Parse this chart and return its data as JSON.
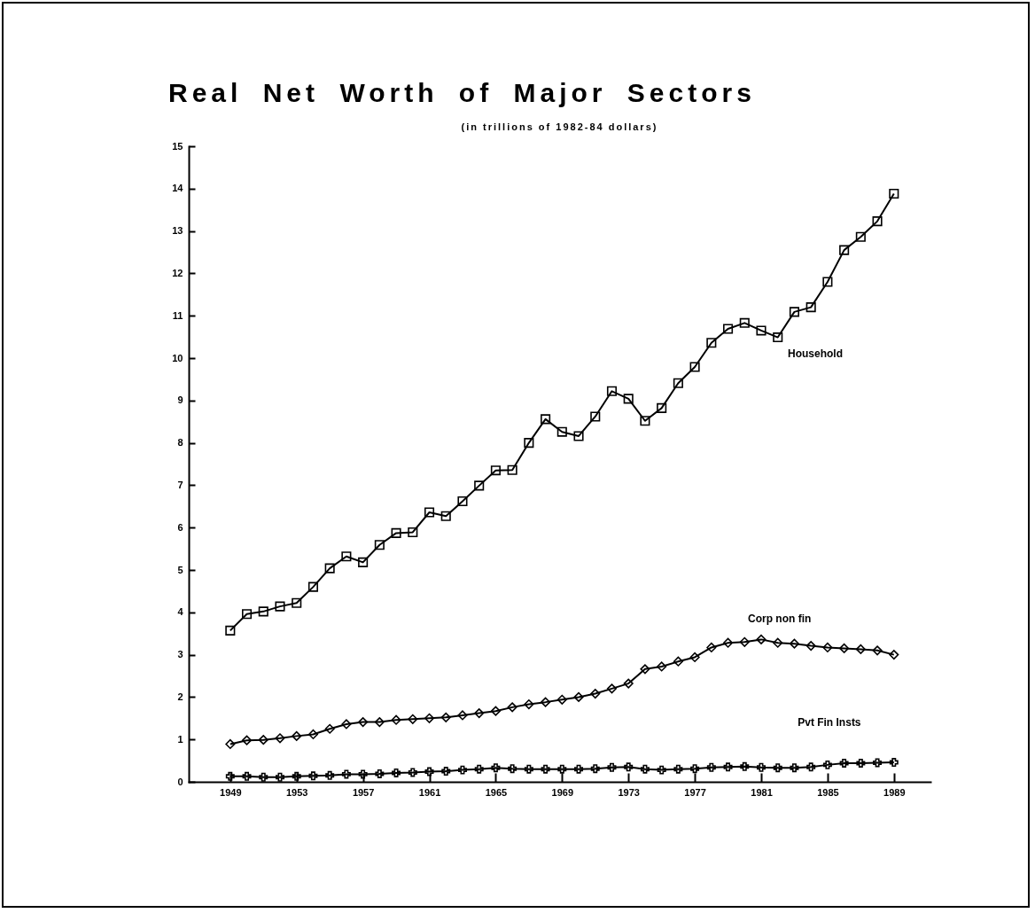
{
  "chart_data": {
    "type": "line",
    "title": "Real Net Worth of Major Sectors",
    "subtitle": "(in trillions of 1982-84 dollars)",
    "x": [
      1949,
      1950,
      1951,
      1952,
      1953,
      1954,
      1955,
      1956,
      1957,
      1958,
      1959,
      1960,
      1961,
      1962,
      1963,
      1964,
      1965,
      1966,
      1967,
      1968,
      1969,
      1970,
      1971,
      1972,
      1973,
      1974,
      1975,
      1976,
      1977,
      1978,
      1979,
      1980,
      1981,
      1982,
      1983,
      1984,
      1985,
      1986,
      1987,
      1988,
      1989
    ],
    "series": [
      {
        "name": "Household",
        "color": "#000000",
        "marker": "square",
        "values": [
          3.57,
          3.96,
          4.02,
          4.14,
          4.22,
          4.6,
          5.04,
          5.32,
          5.18,
          5.59,
          5.87,
          5.89,
          6.36,
          6.27,
          6.62,
          6.99,
          7.35,
          7.36,
          8.0,
          8.56,
          8.26,
          8.16,
          8.62,
          9.22,
          9.04,
          8.52,
          8.82,
          9.41,
          9.79,
          10.36,
          10.69,
          10.83,
          10.65,
          10.49,
          11.09,
          11.2,
          11.8,
          12.55,
          12.86,
          13.23,
          13.88
        ]
      },
      {
        "name": "Corp non fin",
        "color": "#000000",
        "marker": "diamond",
        "values": [
          0.89,
          0.98,
          0.99,
          1.03,
          1.08,
          1.12,
          1.25,
          1.36,
          1.41,
          1.41,
          1.46,
          1.48,
          1.5,
          1.52,
          1.57,
          1.62,
          1.67,
          1.76,
          1.83,
          1.88,
          1.94,
          2.0,
          2.08,
          2.2,
          2.32,
          2.66,
          2.72,
          2.84,
          2.94,
          3.17,
          3.28,
          3.3,
          3.36,
          3.28,
          3.26,
          3.21,
          3.17,
          3.15,
          3.13,
          3.1,
          3.0
        ]
      },
      {
        "name": "Pvt Fin Insts",
        "color": "#000000",
        "marker": "cross",
        "values": [
          0.13,
          0.13,
          0.11,
          0.11,
          0.13,
          0.14,
          0.15,
          0.18,
          0.18,
          0.19,
          0.21,
          0.22,
          0.24,
          0.25,
          0.28,
          0.3,
          0.33,
          0.31,
          0.3,
          0.3,
          0.3,
          0.3,
          0.31,
          0.34,
          0.35,
          0.3,
          0.28,
          0.3,
          0.31,
          0.34,
          0.35,
          0.36,
          0.34,
          0.33,
          0.33,
          0.35,
          0.4,
          0.44,
          0.44,
          0.45,
          0.46
        ]
      }
    ],
    "xlim": [
      1946.5,
      1991.2
    ],
    "xticks": [
      1949,
      1953,
      1957,
      1961,
      1965,
      1969,
      1973,
      1977,
      1981,
      1985,
      1989
    ],
    "ylim": [
      0,
      15
    ],
    "yticks": [
      0,
      1,
      2,
      3,
      4,
      5,
      6,
      7,
      8,
      9,
      10,
      11,
      12,
      13,
      14,
      15
    ],
    "grid": false,
    "legend": false,
    "line_style": "solid"
  }
}
